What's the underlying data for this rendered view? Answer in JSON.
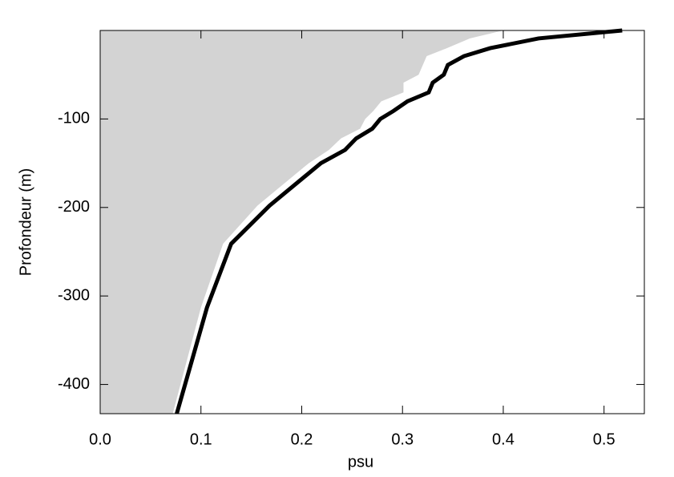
{
  "chart_data": {
    "type": "line",
    "x_label": "psu",
    "y_label": "Profondeur (m)",
    "xlim": [
      0,
      0.54
    ],
    "ylim": [
      -433,
      0
    ],
    "xticks": [
      {
        "value": 0,
        "label": "0.0"
      },
      0.1,
      0.2,
      0.3,
      0.4,
      0.5
    ],
    "yticks": [
      -100,
      -200,
      -300,
      -400
    ],
    "series": [
      {
        "color": "#d3d3d3",
        "fill": true,
        "x": [
          0.4,
          0.367,
          0.344,
          0.324,
          0.316,
          0.301,
          0.301,
          0.279,
          0.271,
          0.263,
          0.258,
          0.239,
          0.227,
          0.207,
          0.156,
          0.122,
          0.1,
          0.072
        ],
        "y": [
          0,
          -9,
          -20,
          -29,
          -50,
          -59,
          -70,
          -80,
          -91,
          -100,
          -111,
          -122,
          -135,
          -150,
          -198,
          -241,
          -313,
          -433
        ]
      },
      {
        "color": "#000000",
        "fill": false,
        "x": [
          0.518,
          0.435,
          0.387,
          0.361,
          0.345,
          0.341,
          0.33,
          0.326,
          0.305,
          0.291,
          0.278,
          0.27,
          0.254,
          0.243,
          0.219,
          0.168,
          0.13,
          0.106,
          0.076
        ],
        "y": [
          0,
          -9,
          -20,
          -29,
          -39,
          -50,
          -59,
          -70,
          -80,
          -91,
          -100,
          -111,
          -122,
          -135,
          -150,
          -198,
          -241,
          -313,
          -433
        ]
      }
    ]
  }
}
